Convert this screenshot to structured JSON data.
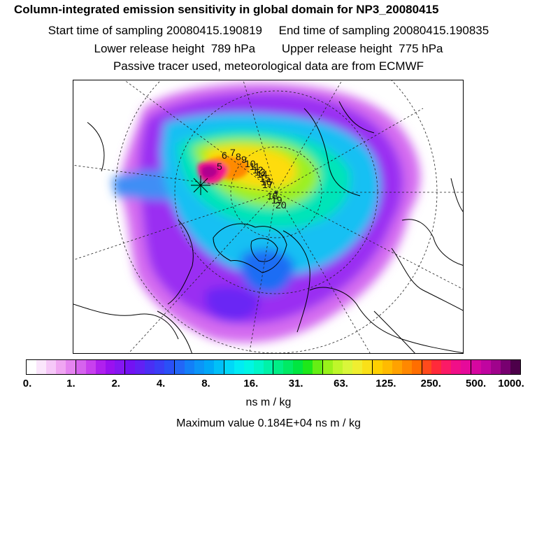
{
  "header": {
    "title": "Column-integrated emission sensitivity in global domain for NP3_20080415",
    "start_label": "Start time of sampling 20080415.190819",
    "end_label": "End time of sampling 20080415.190835",
    "lower_label": "Lower release height  789 hPa",
    "upper_label": "Upper release height  775 hPa",
    "note": "Passive tracer used, meteorological data are from ECMWF"
  },
  "map": {
    "trajectory_labels": [
      "5",
      "6",
      "7",
      "8",
      "9",
      "10",
      "11",
      "12",
      "13",
      "14",
      "15",
      "16",
      "17",
      "18",
      "19",
      "20"
    ]
  },
  "colorbar": {
    "ticks": [
      "0.",
      "1.",
      "2.",
      "4.",
      "8.",
      "16.",
      "31.",
      "63.",
      "125.",
      "250.",
      "500.",
      "1000."
    ],
    "colors": [
      "#ffffff",
      "#fbe6fc",
      "#f6c8f8",
      "#f0a6f2",
      "#e584f0",
      "#d663ee",
      "#c840ee",
      "#b020ee",
      "#9a11f0",
      "#8517f2",
      "#7312f3",
      "#6220f4",
      "#4a2ff4",
      "#3a3ef6",
      "#2a50f7",
      "#2266f7",
      "#137ff8",
      "#0b95f8",
      "#00a8f8",
      "#00c0f8",
      "#00d8f8",
      "#00ecf4",
      "#00f6e4",
      "#00f6c8",
      "#00f2a8",
      "#00ee86",
      "#00ea64",
      "#00e640",
      "#1ee81a",
      "#66ee14",
      "#99f21a",
      "#bff62a",
      "#daf63a",
      "#f0ee30",
      "#fae018",
      "#fed000",
      "#ffbb00",
      "#ffa200",
      "#ff8800",
      "#ff6e00",
      "#ff4a1c",
      "#ff2a3a",
      "#fb1a66",
      "#f00f88",
      "#e60a9a",
      "#d607a0",
      "#c005a0",
      "#a0038c",
      "#780070",
      "#4d004a"
    ],
    "units": "ns m / kg",
    "max_value": "Maximum value  0.184E+04 ns m / kg"
  }
}
